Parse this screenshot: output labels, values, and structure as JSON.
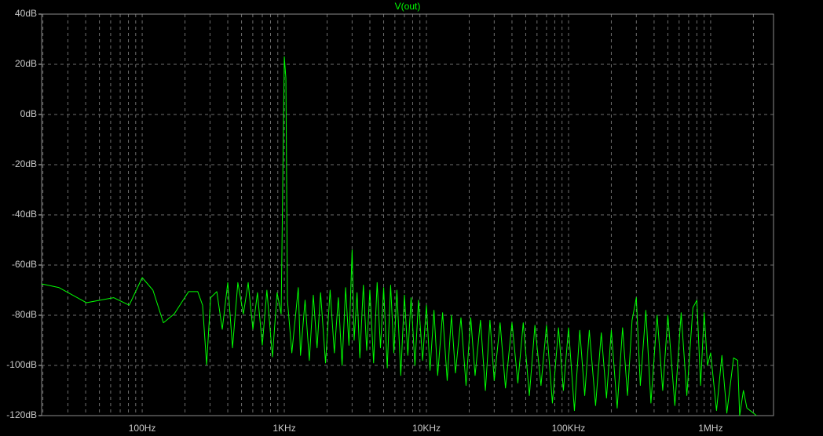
{
  "chart_data": {
    "type": "line",
    "log_x": true,
    "grid": true,
    "background": "#000000",
    "xlim": [
      19.6,
      2770000
    ],
    "ylim": [
      -120,
      40
    ],
    "xticks": [
      {
        "value": 100,
        "label": "100Hz"
      },
      {
        "value": 1000,
        "label": "1KHz"
      },
      {
        "value": 10000,
        "label": "10KHz"
      },
      {
        "value": 100000,
        "label": "100KHz"
      },
      {
        "value": 1000000,
        "label": "1MHz"
      }
    ],
    "minor_xticks": [
      20,
      30,
      40,
      50,
      60,
      70,
      80,
      90,
      200,
      300,
      400,
      500,
      600,
      700,
      800,
      900,
      2000,
      3000,
      4000,
      5000,
      6000,
      7000,
      8000,
      9000,
      20000,
      30000,
      40000,
      50000,
      60000,
      70000,
      80000,
      90000,
      200000,
      300000,
      400000,
      500000,
      600000,
      700000,
      800000,
      900000,
      2000000
    ],
    "yticks": [
      {
        "value": 40,
        "label": "40dB"
      },
      {
        "value": 20,
        "label": "20dB"
      },
      {
        "value": 0,
        "label": "0dB"
      },
      {
        "value": -20,
        "label": "-20dB"
      },
      {
        "value": -40,
        "label": "-40dB"
      },
      {
        "value": -60,
        "label": "-60dB"
      },
      {
        "value": -80,
        "label": "-80dB"
      },
      {
        "value": -100,
        "label": "-100dB"
      },
      {
        "value": -120,
        "label": "-120dB"
      }
    ],
    "x": [
      19.6,
      26,
      40.5,
      63,
      81,
      100,
      119,
      141,
      168,
      212,
      246,
      266,
      284,
      303,
      335,
      366,
      400,
      432,
      471,
      515,
      557,
      601,
      647,
      700,
      754,
      825,
      890,
      950,
      1000,
      1026,
      1052,
      1130,
      1254,
      1300,
      1400,
      1500,
      1600,
      1700,
      1800,
      1950,
      2100,
      2250,
      2400,
      2550,
      2700,
      2850,
      3000,
      3100,
      3250,
      3400,
      3600,
      3800,
      4000,
      4250,
      4500,
      4750,
      5000,
      5300,
      5600,
      5900,
      6200,
      6600,
      7000,
      7400,
      7800,
      8300,
      8800,
      9400,
      10000,
      10600,
      11300,
      12000,
      13000,
      14000,
      15000,
      16000,
      17500,
      19000,
      20500,
      22000,
      24000,
      26000,
      28000,
      30000,
      33000,
      36000,
      40000,
      44000,
      48000,
      53000,
      58000,
      64000,
      70000,
      77000,
      85000,
      92000,
      100000,
      110000,
      120000,
      130000,
      140000,
      155000,
      170000,
      185000,
      200000,
      220000,
      240000,
      260000,
      280000,
      300000,
      320000,
      350000,
      380000,
      420000,
      460000,
      500000,
      560000,
      620000,
      680000,
      750000,
      800000,
      850000,
      900000,
      950000,
      1000000,
      1100000,
      1200000,
      1300000,
      1450000,
      1550000,
      1600000,
      1700000,
      1800000,
      2000000,
      2100000
    ],
    "series": [
      {
        "name": "V(out)",
        "color": "#00ff00",
        "values": [
          -67.5,
          -69,
          -75,
          -73,
          -76,
          -65,
          -70,
          -83,
          -79.5,
          -70.6,
          -70.6,
          -76,
          -99.7,
          -73,
          -70.6,
          -85.6,
          -67,
          -93,
          -67,
          -79.5,
          -67,
          -85.6,
          -71,
          -91.9,
          -70,
          -96.6,
          -71,
          -79.5,
          23,
          14.4,
          -74,
          -95,
          -69,
          -96,
          -74,
          -98,
          -72,
          -93,
          -71,
          -99,
          -70,
          -95,
          -73,
          -100,
          -69,
          -92,
          -54,
          -90,
          -71,
          -97,
          -68,
          -94,
          -70,
          -99,
          -67,
          -93,
          -69,
          -101,
          -68,
          -95,
          -70,
          -104,
          -72,
          -96,
          -73,
          -100,
          -74,
          -98,
          -76,
          -102,
          -78,
          -104,
          -79,
          -106,
          -80,
          -103,
          -81,
          -108,
          -81,
          -104,
          -82,
          -110,
          -82,
          -106,
          -83,
          -109,
          -83,
          -107,
          -83,
          -112,
          -84,
          -108,
          -84,
          -115,
          -85,
          -110,
          -85,
          -118,
          -86,
          -112,
          -86,
          -116,
          -87,
          -113,
          -86,
          -117,
          -85,
          -112,
          -82,
          -73,
          -108,
          -78,
          -115,
          -80,
          -110,
          -80,
          -116,
          -79,
          -112,
          -77,
          -74,
          -108,
          -79,
          -100,
          -95,
          -118,
          -96,
          -119,
          -97,
          -98,
          -120,
          -110,
          -117,
          -119,
          -120
        ]
      }
    ]
  }
}
